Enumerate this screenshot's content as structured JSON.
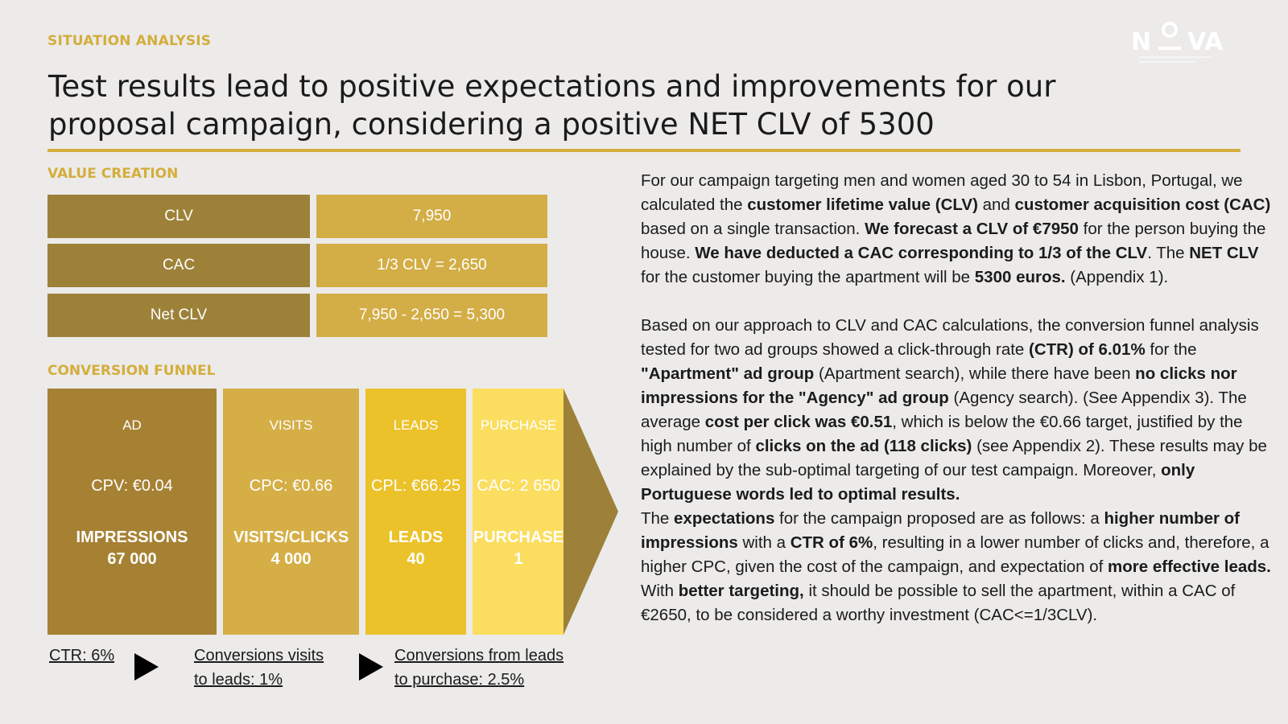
{
  "header": {
    "kicker": "SITUATION ANALYSIS",
    "logo_text": "NOVA",
    "title_line1": "Test results lead to positive expectations and improvements for our",
    "title_line2": "proposal campaign, considering a positive NET CLV of 5300"
  },
  "value_creation": {
    "label": "VALUE CREATION",
    "rows": [
      {
        "key": "CLV",
        "value": "7,950"
      },
      {
        "key": "CAC",
        "value": "1/3 CLV = 2,650"
      },
      {
        "key": "Net CLV",
        "value": "7,950 - 2,650 = 5,300"
      }
    ]
  },
  "funnel": {
    "label": "CONVERSION FUNNEL",
    "stages": [
      {
        "name": "AD",
        "metric": "CPV: €0.04",
        "label": "IMPRESSIONS",
        "value": "67 000",
        "color": "#a68133"
      },
      {
        "name": "VISITS",
        "metric": "CPC: €0.66",
        "label": "VISITS/CLICKS",
        "value": "4 000",
        "color": "#d5ae46"
      },
      {
        "name": "LEADS",
        "metric": "CPL: €66.25",
        "label": "LEADS",
        "value": "40",
        "color": "#ecc22b"
      },
      {
        "name": "PURCHASE",
        "metric": "CAC: 2 650",
        "label": "PURCHASE",
        "value": "1",
        "color": "#fbdd60"
      }
    ],
    "arrow_color": "#9d8138",
    "notes": {
      "ctr": "CTR: 6%",
      "visits_to_leads_1": "Conversions visits",
      "visits_to_leads_2": "to leads: 1%",
      "leads_to_purchase_1": "Conversions from leads",
      "leads_to_purchase_2": "to purchase: 2.5%"
    }
  },
  "text": {
    "p1": [
      {
        "t": "For our campaign targeting men and women aged 30 to 54 in Lisbon, Portugal, we calculated the ",
        "b": false
      },
      {
        "t": "customer lifetime value (CLV)",
        "b": true
      },
      {
        "t": " and ",
        "b": false
      },
      {
        "t": "customer acquisition cost (CAC)",
        "b": true
      },
      {
        "t": " based on a single transaction. ",
        "b": false
      },
      {
        "t": "We forecast a CLV of €7950",
        "b": true
      },
      {
        "t": " for the person buying the house. ",
        "b": false
      },
      {
        "t": "We have deducted a CAC corresponding to 1/3 of the CLV",
        "b": true
      },
      {
        "t": ". The ",
        "b": false
      },
      {
        "t": "NET CLV",
        "b": true
      },
      {
        "t": " for the customer buying the apartment will be ",
        "b": false
      },
      {
        "t": "5300 euros.",
        "b": true
      },
      {
        "t": " (Appendix 1).",
        "b": false
      }
    ],
    "p2": [
      {
        "t": "Based on our approach to CLV and CAC calculations, the conversion funnel analysis tested for two ad groups showed a click-through rate ",
        "b": false
      },
      {
        "t": "(CTR) of 6.01%",
        "b": true
      },
      {
        "t": " for the ",
        "b": false
      },
      {
        "t": "\"Apartment\" ad group",
        "b": true
      },
      {
        "t": " (Apartment search), while there have been ",
        "b": false
      },
      {
        "t": "no clicks nor impressions for the \"Agency\" ad group",
        "b": true
      },
      {
        "t": " (Agency search). (See Appendix 3).  The average ",
        "b": false
      },
      {
        "t": "cost per click was €0.51",
        "b": true
      },
      {
        "t": ", which is below the €0.66 target, justified by the high number of ",
        "b": false
      },
      {
        "t": "clicks on the ad (118 clicks)",
        "b": true
      },
      {
        "t": " (see Appendix 2). These results may be explained by the sub-optimal targeting of our test campaign. Moreover, ",
        "b": false
      },
      {
        "t": "only Portuguese words led to optimal results.",
        "b": true
      }
    ],
    "p3": [
      {
        "t": "The ",
        "b": false
      },
      {
        "t": "expectations",
        "b": true
      },
      {
        "t": " for the campaign proposed are as follows: a ",
        "b": false
      },
      {
        "t": "higher number of impressions",
        "b": true
      },
      {
        "t": " with a ",
        "b": false
      },
      {
        "t": "CTR of 6%",
        "b": true
      },
      {
        "t": ", resulting in a lower number of clicks and, therefore, a higher CPC, given the cost of the campaign, and expectation of ",
        "b": false
      },
      {
        "t": "more effective leads.",
        "b": true
      },
      {
        "t": " With ",
        "b": false
      },
      {
        "t": "better targeting,",
        "b": true
      },
      {
        "t": " it should be possible to sell the apartment, within a CAC of €2650, to be considered a worthy investment (CAC<=1/3CLV).",
        "b": false
      }
    ]
  },
  "colors": {
    "accent": "#d4ad3c",
    "background": "#ecebea"
  }
}
